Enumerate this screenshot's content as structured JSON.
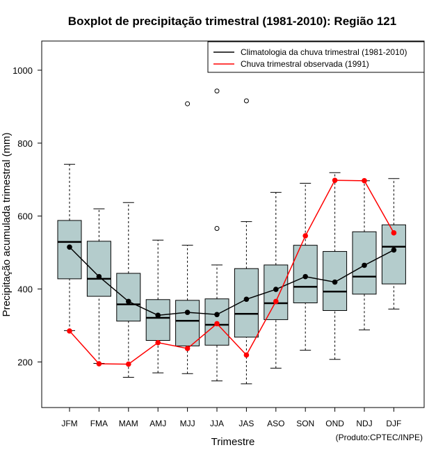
{
  "chart_data": {
    "type": "boxplot",
    "title": "Boxplot de precipitação trimestral (1981-2010): Região 121",
    "xlabel": "Trimestre",
    "ylabel": "Precipitação acumulada trimestral (mm)",
    "credit": "(Produto:CPTEC/INPE)",
    "ylim": [
      75,
      1080
    ],
    "yticks": [
      200,
      400,
      600,
      800,
      1000
    ],
    "legend_position": "top-right",
    "categories": [
      "JFM",
      "FMA",
      "MAM",
      "AMJ",
      "MJJ",
      "JJA",
      "JAS",
      "ASO",
      "SON",
      "OND",
      "NDJ",
      "DJF"
    ],
    "boxes": [
      {
        "label": "JFM",
        "min": 286,
        "q1": 428,
        "median": 529,
        "q3": 588,
        "max": 742,
        "outliers": []
      },
      {
        "label": "FMA",
        "min": 196,
        "q1": 380,
        "median": 428,
        "q3": 531,
        "max": 620,
        "outliers": []
      },
      {
        "label": "MAM",
        "min": 158,
        "q1": 312,
        "median": 358,
        "q3": 443,
        "max": 637,
        "outliers": []
      },
      {
        "label": "AMJ",
        "min": 170,
        "q1": 259,
        "median": 321,
        "q3": 371,
        "max": 534,
        "outliers": []
      },
      {
        "label": "MJJ",
        "min": 168,
        "q1": 244,
        "median": 313,
        "q3": 369,
        "max": 520,
        "outliers": [
          908
        ]
      },
      {
        "label": "JJA",
        "min": 148,
        "q1": 246,
        "median": 302,
        "q3": 373,
        "max": 466,
        "outliers": [
          566,
          943
        ]
      },
      {
        "label": "JAS",
        "min": 140,
        "q1": 268,
        "median": 332,
        "q3": 456,
        "max": 585,
        "outliers": [
          916
        ]
      },
      {
        "label": "ASO",
        "min": 183,
        "q1": 316,
        "median": 361,
        "q3": 466,
        "max": 665,
        "outliers": []
      },
      {
        "label": "SON",
        "min": 232,
        "q1": 362,
        "median": 406,
        "q3": 520,
        "max": 690,
        "outliers": []
      },
      {
        "label": "OND",
        "min": 207,
        "q1": 341,
        "median": 393,
        "q3": 503,
        "max": 719,
        "outliers": []
      },
      {
        "label": "NDJ",
        "min": 288,
        "q1": 386,
        "median": 434,
        "q3": 557,
        "max": 697,
        "outliers": []
      },
      {
        "label": "DJF",
        "min": 345,
        "q1": 414,
        "median": 516,
        "q3": 576,
        "max": 703,
        "outliers": []
      }
    ],
    "series": [
      {
        "name": "Climatologia da chuva trimestral (1981-2010)",
        "color": "#000000",
        "values": [
          515,
          434,
          366,
          328,
          336,
          330,
          372,
          399,
          434,
          419,
          465,
          507
        ]
      },
      {
        "name": "Chuva trimestral observada (1991)",
        "color": "#ff0000",
        "values": [
          285,
          195,
          194,
          253,
          237,
          305,
          219,
          366,
          546,
          698,
          697,
          554
        ]
      }
    ],
    "box_fill": "#b4cccc"
  }
}
